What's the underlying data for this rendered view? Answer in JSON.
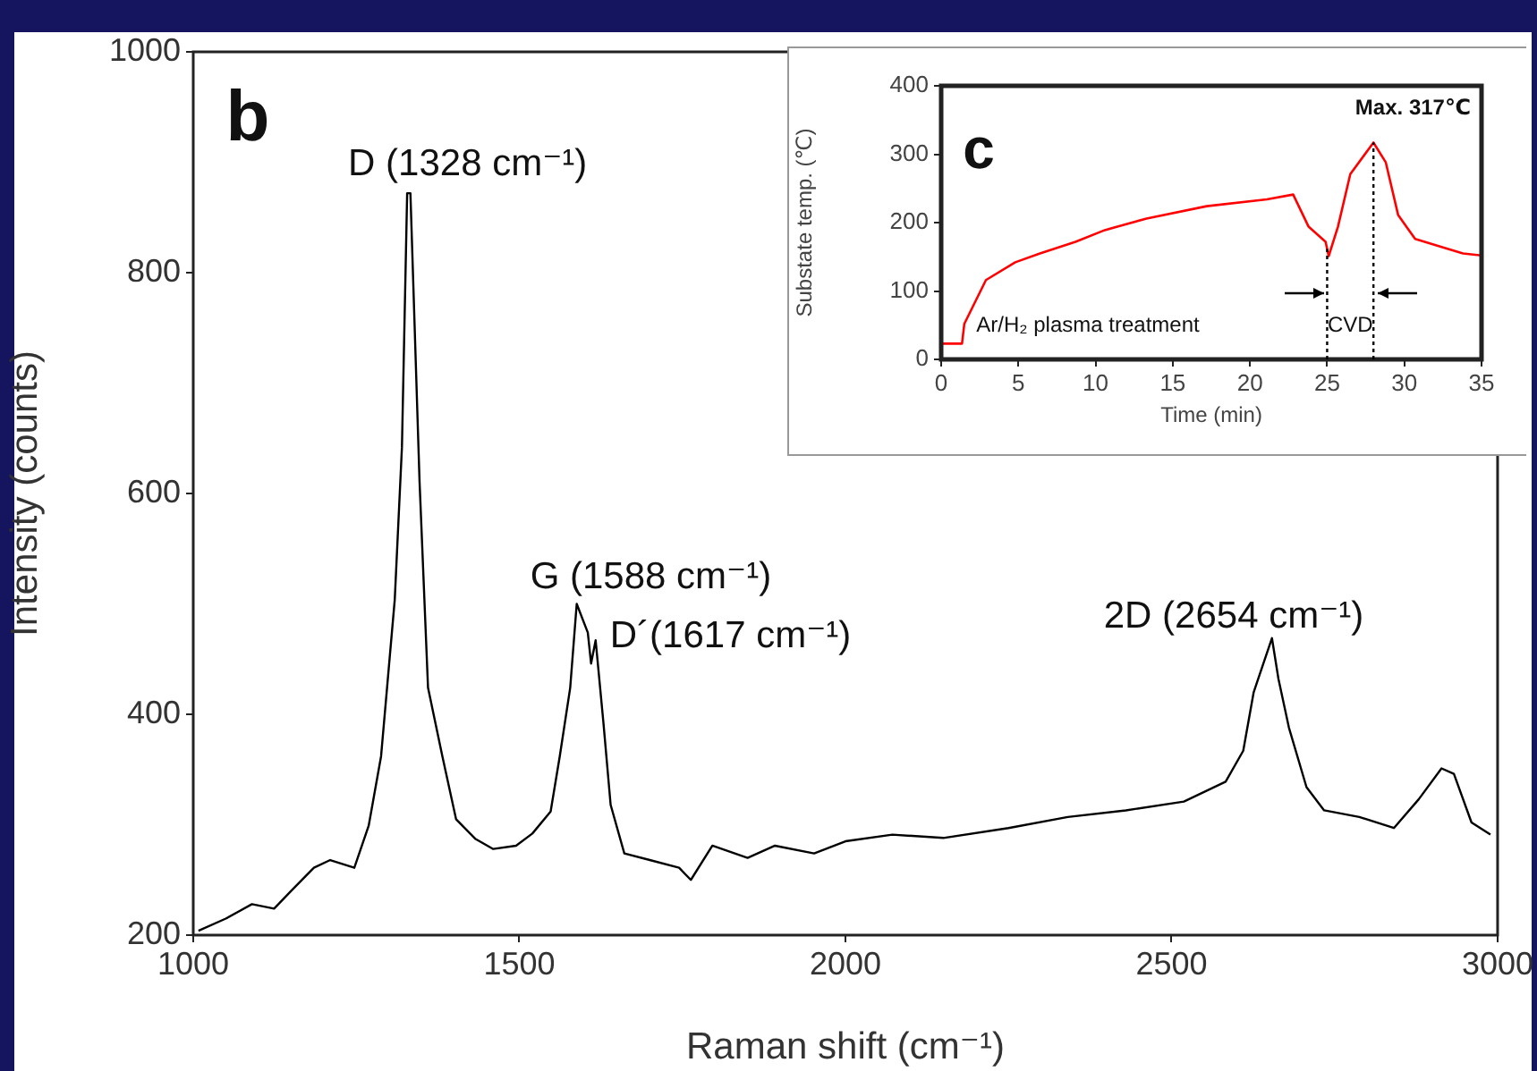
{
  "chart_data": [
    {
      "type": "line",
      "xlabel": "Raman shift (cm⁻¹)",
      "ylabel": "Intensity (counts)",
      "xlim": [
        1000,
        3000
      ],
      "ylim": [
        200,
        1000
      ],
      "xticks": [
        1000,
        1500,
        2000,
        2500,
        3000
      ],
      "yticks": [
        200,
        400,
        600,
        800,
        1000
      ],
      "grid": false,
      "series": [
        {
          "color": "#000000",
          "x": [
            1008,
            1050,
            1090,
            1124,
            1150,
            1185,
            1210,
            1247,
            1269,
            1288,
            1309,
            1320,
            1328,
            1333,
            1347,
            1360,
            1382,
            1403,
            1433,
            1460,
            1495,
            1520,
            1548,
            1562,
            1578,
            1588,
            1605,
            1610,
            1617,
            1629,
            1640,
            1661,
            1700,
            1745,
            1763,
            1796,
            1850,
            1892,
            1952,
            2000,
            2072,
            2150,
            2250,
            2341,
            2430,
            2519,
            2583,
            2610,
            2626,
            2654,
            2664,
            2680,
            2707,
            2734,
            2788,
            2841,
            2879,
            2914,
            2933,
            2960,
            2989
          ],
          "values": [
            204,
            215,
            228,
            224,
            240,
            261,
            268,
            261,
            299,
            362,
            504,
            642,
            872,
            872,
            611,
            424,
            362,
            305,
            287,
            278,
            281,
            292,
            312,
            362,
            424,
            500,
            474,
            446,
            467,
            392,
            318,
            274,
            268,
            261,
            250,
            281,
            270,
            281,
            274,
            285,
            291,
            288,
            297,
            307,
            313,
            321,
            339,
            367,
            420,
            469,
            432,
            388,
            334,
            313,
            307,
            297,
            323,
            351,
            346,
            302,
            291
          ]
        }
      ],
      "annotations": [
        "b",
        {
          "text": "D (1328 cm⁻¹)",
          "x": 1328,
          "y": 872
        },
        {
          "text": "G (1588 cm⁻¹)",
          "x": 1588,
          "y": 500
        },
        {
          "text": "D´(1617 cm⁻¹)",
          "x": 1617,
          "y": 467
        },
        {
          "text": "2D (2654 cm⁻¹)",
          "x": 2654,
          "y": 469
        }
      ]
    },
    {
      "type": "line",
      "xlabel": "Time (min)",
      "ylabel": "Substate temp. (℃)",
      "xlim": [
        0,
        35
      ],
      "ylim": [
        0,
        400
      ],
      "xticks": [
        0,
        5,
        10,
        15,
        20,
        25,
        30,
        35
      ],
      "yticks": [
        0,
        100,
        200,
        300,
        400
      ],
      "grid": false,
      "series": [
        {
          "color": "#ff0000",
          "x": [
            0,
            1.35,
            1.5,
            2.9,
            4.8,
            6.4,
            8.7,
            10.6,
            13.3,
            17.2,
            21.1,
            22.8,
            23.8,
            24.9,
            25.1,
            25.7,
            26.5,
            28,
            28.8,
            29.6,
            30.7,
            32.6,
            33.8,
            35
          ],
          "values": [
            23,
            23,
            52,
            116,
            142,
            155,
            172,
            189,
            206,
            224,
            234,
            241,
            194,
            172,
            151,
            194,
            271,
            317,
            288,
            211,
            176,
            163,
            155,
            152
          ]
        }
      ],
      "ref_lines": [
        {
          "axis": "x",
          "value": 25,
          "line_style": "dotted",
          "color": "#000000"
        },
        {
          "axis": "x",
          "value": 28,
          "line_style": "dotted",
          "color": "#000000"
        }
      ],
      "annotations": [
        "c",
        "Max. 317℃",
        "Ar/H₂ plasma treatment",
        "CVD"
      ]
    }
  ]
}
